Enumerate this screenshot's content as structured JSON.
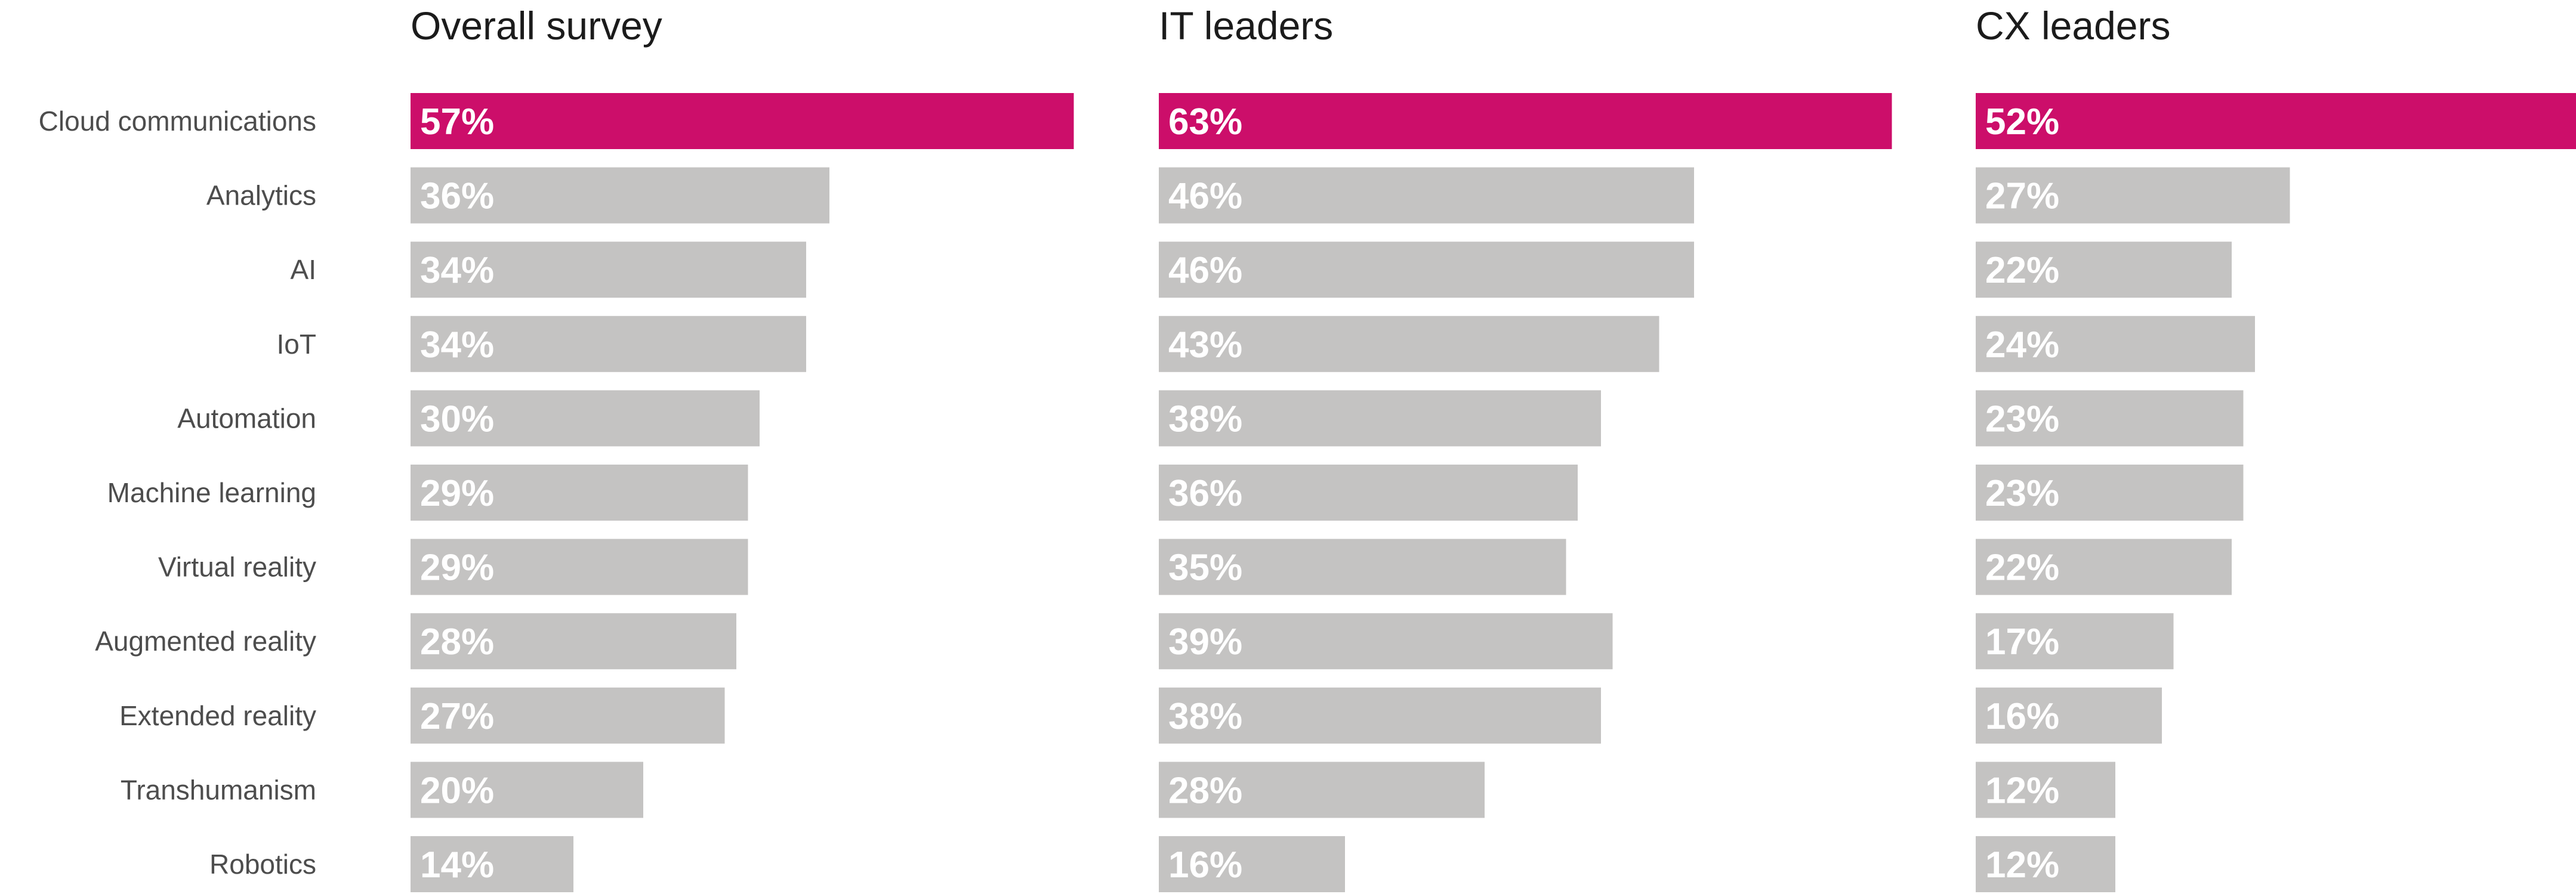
{
  "chart_data": {
    "type": "bar",
    "orientation": "horizontal",
    "categories": [
      "Cloud communications",
      "Analytics",
      "AI",
      "IoT",
      "Automation",
      "Machine learning",
      "Virtual reality",
      "Augmented reality",
      "Extended reality",
      "Transhumanism",
      "Robotics"
    ],
    "value_suffix": "%",
    "xlim": [
      0,
      100
    ],
    "grid": false,
    "highlight_category": "Cloud communications",
    "colors": {
      "highlight": "#cc0e6a",
      "default": "#c4c3c2",
      "value_text": "#ffffff",
      "category_text": "#4d4d4d",
      "title_text": "#1b1b1b"
    },
    "series": [
      {
        "name": "Overall survey",
        "values": [
          57,
          36,
          34,
          34,
          30,
          29,
          29,
          28,
          27,
          20,
          14
        ]
      },
      {
        "name": "IT leaders",
        "values": [
          63,
          46,
          46,
          43,
          38,
          36,
          35,
          39,
          38,
          28,
          16
        ]
      },
      {
        "name": "CX leaders",
        "values": [
          52,
          27,
          22,
          24,
          23,
          23,
          22,
          17,
          16,
          12,
          12
        ]
      }
    ]
  }
}
